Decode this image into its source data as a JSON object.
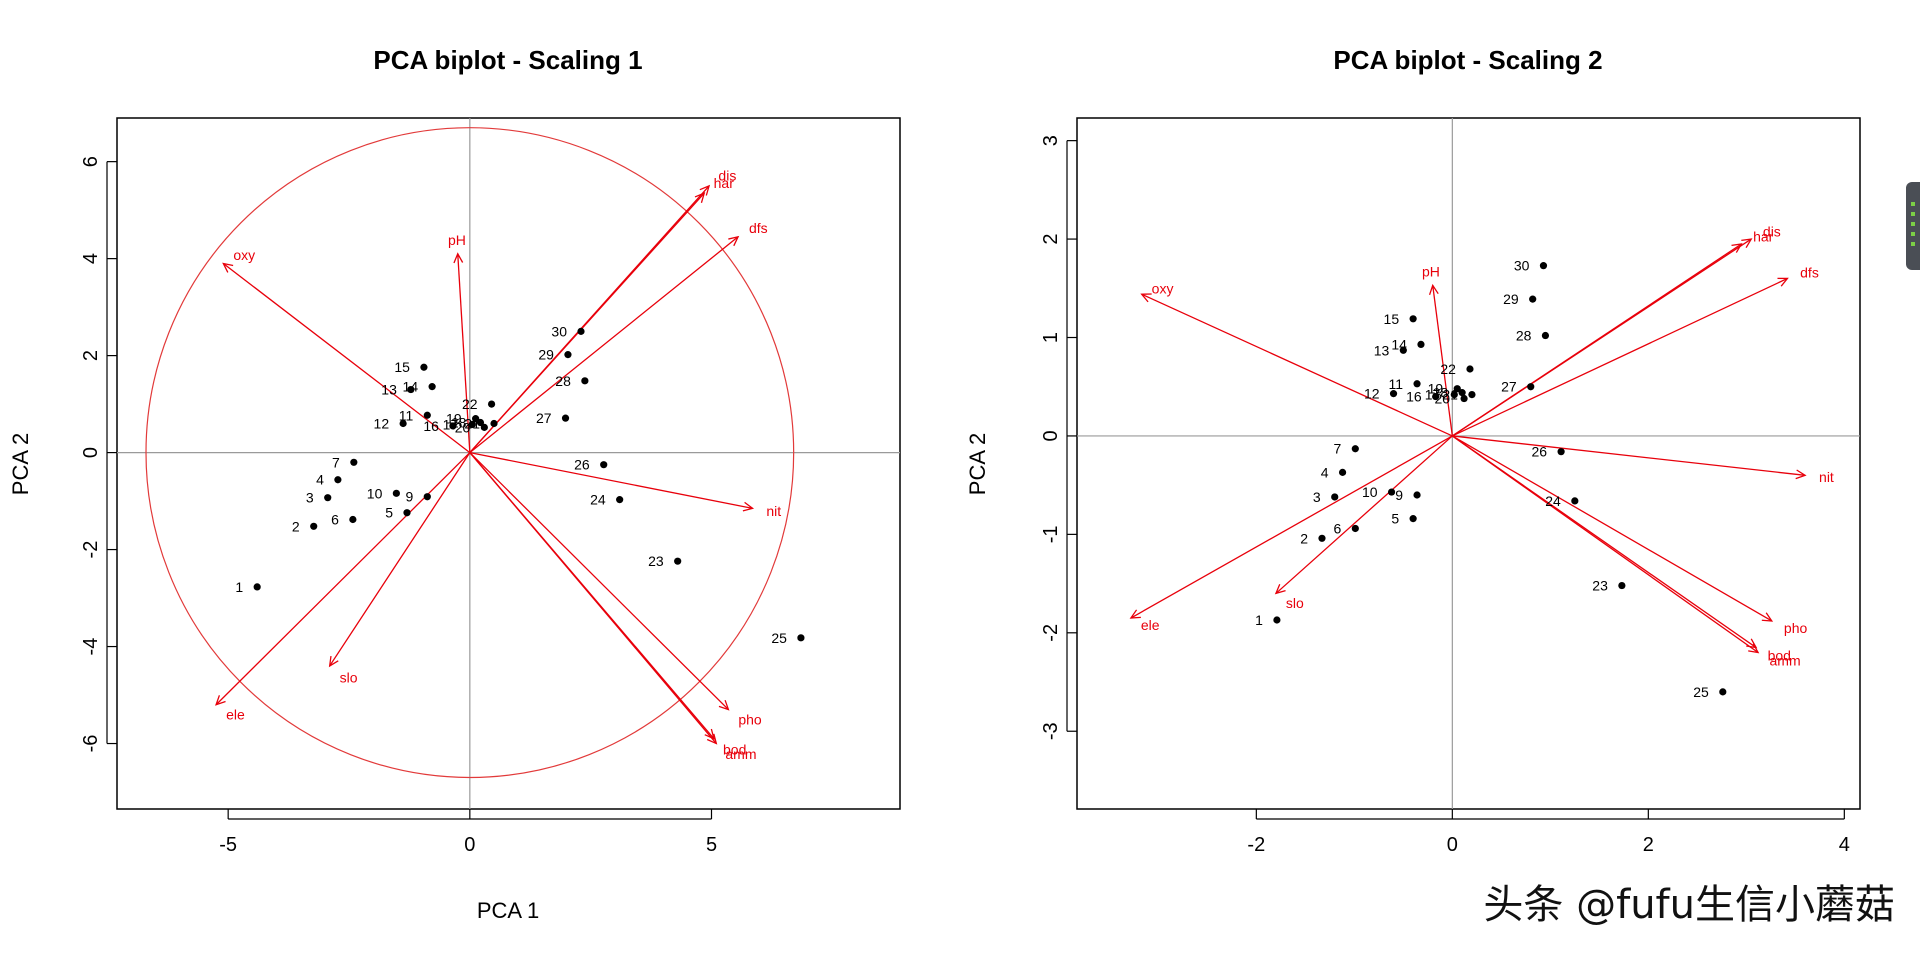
{
  "colors": {
    "arrow": "#e8000b",
    "circle": "#e23a3a",
    "point": "#000000",
    "axisline": "#9a9a9a"
  },
  "watermark": "头条 @fufu生信小蘑菇",
  "chart_data": [
    {
      "type": "scatter",
      "title": "PCA biplot - Scaling 1",
      "xlabel": "PCA 1",
      "ylabel": "PCA 2",
      "xlim": [
        -7.3,
        8.9
      ],
      "ylim": [
        -7.35,
        6.9
      ],
      "xticks": [
        -5,
        0,
        5
      ],
      "yticks": [
        -6,
        -4,
        -2,
        0,
        2,
        4,
        6
      ],
      "origin_lines": true,
      "equilibrium_circle_radius": 6.7,
      "sites": [
        {
          "label": "1",
          "x": -4.4,
          "y": -2.77,
          "side": "left"
        },
        {
          "label": "2",
          "x": -3.23,
          "y": -1.52,
          "side": "left"
        },
        {
          "label": "3",
          "x": -2.94,
          "y": -0.93,
          "side": "left"
        },
        {
          "label": "4",
          "x": -2.73,
          "y": -0.56,
          "side": "left"
        },
        {
          "label": "5",
          "x": -1.3,
          "y": -1.24,
          "side": "left"
        },
        {
          "label": "6",
          "x": -2.42,
          "y": -1.38,
          "side": "left"
        },
        {
          "label": "7",
          "x": -2.4,
          "y": -0.2,
          "side": "left"
        },
        {
          "label": "9",
          "x": -0.88,
          "y": -0.91,
          "side": "left"
        },
        {
          "label": "10",
          "x": -1.52,
          "y": -0.84,
          "side": "left"
        },
        {
          "label": "11",
          "x": -0.88,
          "y": 0.77,
          "side": "left"
        },
        {
          "label": "12",
          "x": -1.38,
          "y": 0.6,
          "side": "left"
        },
        {
          "label": "13",
          "x": -1.22,
          "y": 1.3,
          "side": "left"
        },
        {
          "label": "14",
          "x": -0.78,
          "y": 1.36,
          "side": "left"
        },
        {
          "label": "15",
          "x": -0.95,
          "y": 1.76,
          "side": "left"
        },
        {
          "label": "16",
          "x": -0.35,
          "y": 0.55,
          "side": "left"
        },
        {
          "label": "17",
          "x": 0.05,
          "y": 0.58,
          "side": "left"
        },
        {
          "label": "18",
          "x": 0.22,
          "y": 0.62,
          "side": "left"
        },
        {
          "label": "19",
          "x": 0.12,
          "y": 0.7,
          "side": "left"
        },
        {
          "label": "20",
          "x": 0.3,
          "y": 0.52,
          "side": "left"
        },
        {
          "label": "21",
          "x": 0.5,
          "y": 0.6,
          "side": "left"
        },
        {
          "label": "22",
          "x": 0.45,
          "y": 1.0,
          "side": "left"
        },
        {
          "label": "23",
          "x": 4.3,
          "y": -2.24,
          "side": "left"
        },
        {
          "label": "24",
          "x": 3.1,
          "y": -0.97,
          "side": "left"
        },
        {
          "label": "25",
          "x": 6.85,
          "y": -3.82,
          "side": "left"
        },
        {
          "label": "26",
          "x": 2.77,
          "y": -0.25,
          "side": "left"
        },
        {
          "label": "27",
          "x": 1.98,
          "y": 0.71,
          "side": "left"
        },
        {
          "label": "28",
          "x": 2.38,
          "y": 1.48,
          "side": "left"
        },
        {
          "label": "29",
          "x": 2.03,
          "y": 2.02,
          "side": "left"
        },
        {
          "label": "30",
          "x": 2.3,
          "y": 2.5,
          "side": "left"
        }
      ],
      "variables": [
        {
          "label": "dis",
          "x": 4.95,
          "y": 5.5
        },
        {
          "label": "har",
          "x": 4.85,
          "y": 5.35
        },
        {
          "label": "dfs",
          "x": 5.55,
          "y": 4.45
        },
        {
          "label": "oxy",
          "x": -5.1,
          "y": 3.9
        },
        {
          "label": "pH",
          "x": -0.25,
          "y": 4.1
        },
        {
          "label": "nit",
          "x": 5.85,
          "y": -1.15
        },
        {
          "label": "pho",
          "x": 5.35,
          "y": -5.3
        },
        {
          "label": "bod",
          "x": 5.05,
          "y": -5.9
        },
        {
          "label": "amm",
          "x": 5.1,
          "y": -6.0
        },
        {
          "label": "slo",
          "x": -2.9,
          "y": -4.4
        },
        {
          "label": "ele",
          "x": -5.25,
          "y": -5.2
        }
      ]
    },
    {
      "type": "scatter",
      "title": "PCA biplot - Scaling 2",
      "xlabel": "",
      "ylabel": "PCA 2",
      "xlim": [
        -3.83,
        4.16
      ],
      "ylim": [
        -3.79,
        3.23
      ],
      "xticks": [
        -2,
        0,
        2,
        4
      ],
      "yticks": [
        -3,
        -2,
        -1,
        0,
        1,
        2,
        3
      ],
      "origin_lines": true,
      "sites": [
        {
          "label": "1",
          "x": -1.79,
          "y": -1.87,
          "side": "left"
        },
        {
          "label": "2",
          "x": -1.33,
          "y": -1.04,
          "side": "left"
        },
        {
          "label": "3",
          "x": -1.2,
          "y": -0.62,
          "side": "left"
        },
        {
          "label": "4",
          "x": -1.12,
          "y": -0.37,
          "side": "left"
        },
        {
          "label": "5",
          "x": -0.4,
          "y": -0.84,
          "side": "left"
        },
        {
          "label": "6",
          "x": -0.99,
          "y": -0.94,
          "side": "left"
        },
        {
          "label": "7",
          "x": -0.99,
          "y": -0.13,
          "side": "left"
        },
        {
          "label": "9",
          "x": -0.36,
          "y": -0.6,
          "side": "left"
        },
        {
          "label": "10",
          "x": -0.62,
          "y": -0.57,
          "side": "left"
        },
        {
          "label": "11",
          "x": -0.36,
          "y": 0.53,
          "side": "left"
        },
        {
          "label": "12",
          "x": -0.6,
          "y": 0.43,
          "side": "left"
        },
        {
          "label": "13",
          "x": -0.5,
          "y": 0.87,
          "side": "left"
        },
        {
          "label": "14",
          "x": -0.32,
          "y": 0.93,
          "side": "left"
        },
        {
          "label": "15",
          "x": -0.4,
          "y": 1.19,
          "side": "left"
        },
        {
          "label": "16",
          "x": -0.17,
          "y": 0.4,
          "side": "left"
        },
        {
          "label": "17",
          "x": 0.02,
          "y": 0.42,
          "side": "left"
        },
        {
          "label": "18",
          "x": 0.1,
          "y": 0.44,
          "side": "left"
        },
        {
          "label": "19",
          "x": 0.05,
          "y": 0.48,
          "side": "left"
        },
        {
          "label": "20",
          "x": 0.12,
          "y": 0.38,
          "side": "left"
        },
        {
          "label": "21",
          "x": 0.2,
          "y": 0.42,
          "side": "left"
        },
        {
          "label": "22",
          "x": 0.18,
          "y": 0.68,
          "side": "left"
        },
        {
          "label": "23",
          "x": 1.73,
          "y": -1.52,
          "side": "left"
        },
        {
          "label": "24",
          "x": 1.25,
          "y": -0.66,
          "side": "left"
        },
        {
          "label": "25",
          "x": 2.76,
          "y": -2.6,
          "side": "left"
        },
        {
          "label": "26",
          "x": 1.11,
          "y": -0.16,
          "side": "left"
        },
        {
          "label": "27",
          "x": 0.8,
          "y": 0.5,
          "side": "left"
        },
        {
          "label": "28",
          "x": 0.95,
          "y": 1.02,
          "side": "left"
        },
        {
          "label": "29",
          "x": 0.82,
          "y": 1.39,
          "side": "left"
        },
        {
          "label": "30",
          "x": 0.93,
          "y": 1.73,
          "side": "left"
        }
      ],
      "variables": [
        {
          "label": "dis",
          "x": 3.05,
          "y": 2.0
        },
        {
          "label": "har",
          "x": 2.95,
          "y": 1.95
        },
        {
          "label": "dfs",
          "x": 3.42,
          "y": 1.6
        },
        {
          "label": "oxy",
          "x": -3.17,
          "y": 1.44
        },
        {
          "label": "pH",
          "x": -0.2,
          "y": 1.53
        },
        {
          "label": "nit",
          "x": 3.6,
          "y": -0.4
        },
        {
          "label": "pho",
          "x": 3.26,
          "y": -1.88
        },
        {
          "label": "bod",
          "x": 3.1,
          "y": -2.15
        },
        {
          "label": "amm",
          "x": 3.12,
          "y": -2.2
        },
        {
          "label": "slo",
          "x": -1.8,
          "y": -1.6
        },
        {
          "label": "ele",
          "x": -3.28,
          "y": -1.85
        }
      ]
    }
  ]
}
